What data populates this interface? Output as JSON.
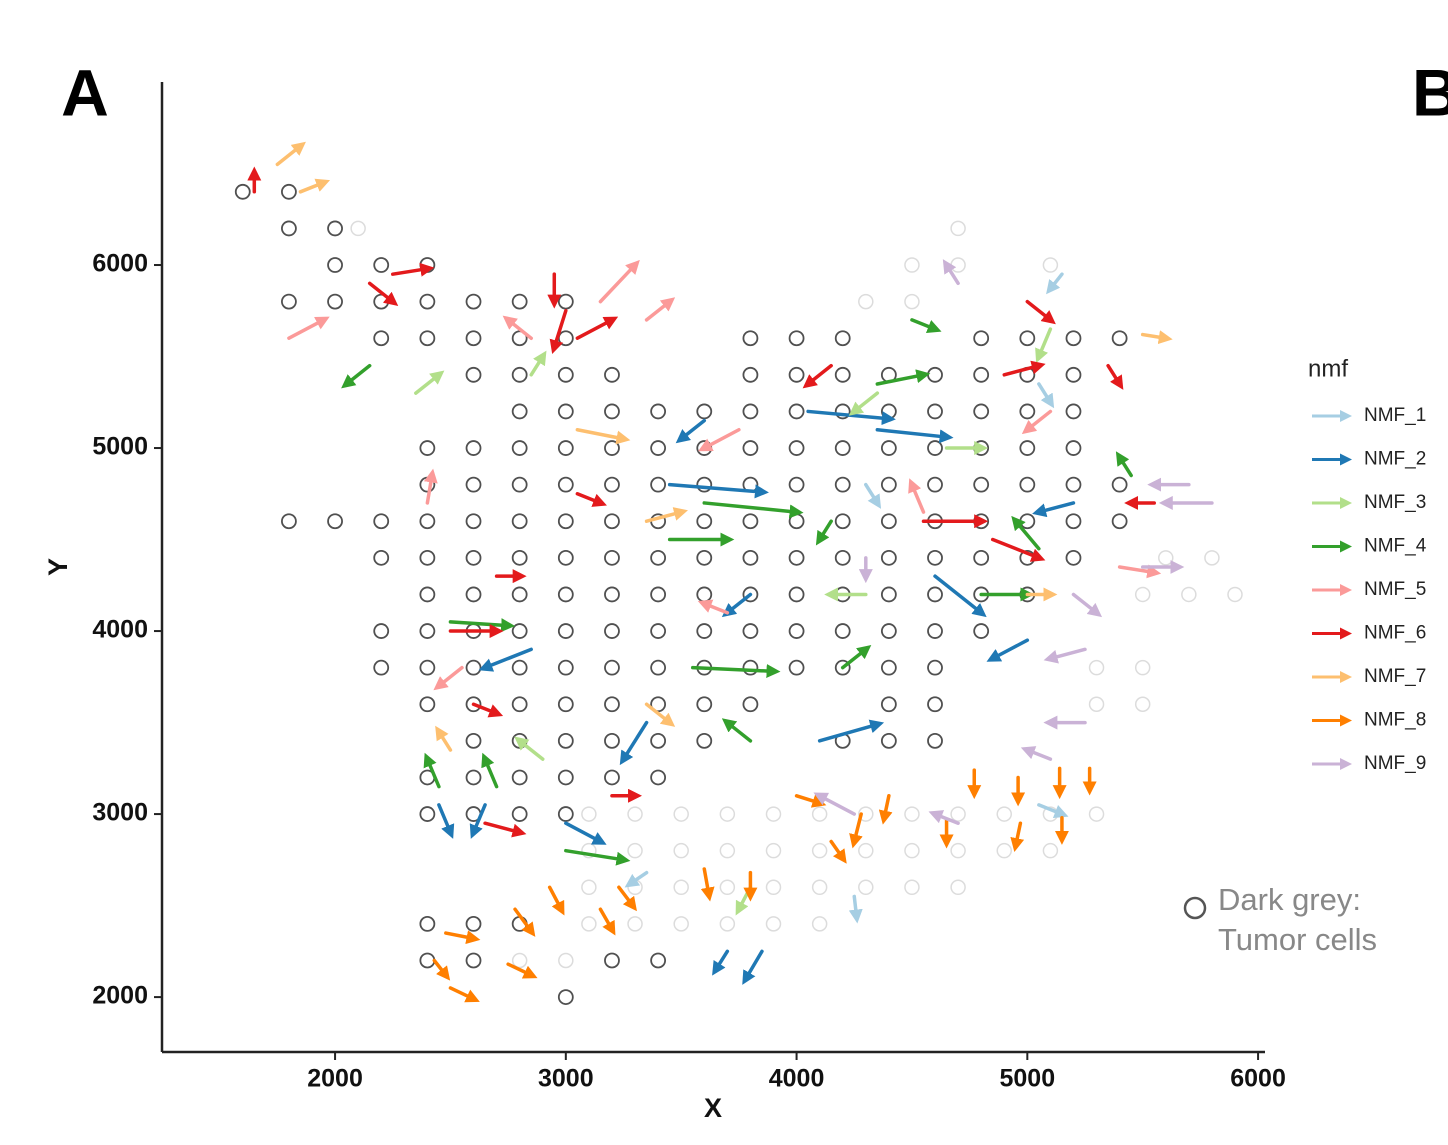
{
  "panel_labels": [
    "A",
    "B"
  ],
  "chart_data": {
    "type": "vector",
    "x_label": "X",
    "y_label": "Y",
    "xlim": [
      1250,
      6030
    ],
    "ylim": [
      1700,
      7000
    ],
    "xticks": [
      2000,
      3000,
      4000,
      5000,
      6000
    ],
    "yticks": [
      2000,
      3000,
      4000,
      5000,
      6000
    ],
    "legend_title": "nmf",
    "legend_position": "right",
    "annotation": [
      "Dark grey:",
      "Tumor cells"
    ],
    "tumor_color": "#505050",
    "other_color": "#dcdcdc",
    "tumor_spots": [
      {
        "y": 6400,
        "x": [
          1600,
          1800
        ]
      },
      {
        "y": 6200,
        "x": [
          1800,
          2000
        ]
      },
      {
        "y": 6000,
        "x": [
          2000,
          2200,
          2400
        ]
      },
      {
        "y": 5800,
        "x": [
          1800,
          2000,
          2200,
          2400,
          2600,
          2800,
          3000
        ]
      },
      {
        "y": 5600,
        "x": [
          2200,
          2400,
          2600,
          2800,
          3000,
          3800,
          4000,
          4200,
          4800,
          5000,
          5200,
          5400
        ]
      },
      {
        "y": 5400,
        "x": [
          2600,
          2800,
          3000,
          3200,
          3800,
          4000,
          4200,
          4400,
          4600,
          4800,
          5000,
          5200
        ]
      },
      {
        "y": 5200,
        "x": [
          2800,
          3000,
          3200,
          3400,
          3600,
          3800,
          4000,
          4200,
          4400,
          4600,
          4800,
          5000,
          5200
        ]
      },
      {
        "y": 5000,
        "x": [
          2400,
          2600,
          2800,
          3000,
          3200,
          3400,
          3600,
          3800,
          4000,
          4200,
          4400,
          4600,
          4800,
          5000,
          5200
        ]
      },
      {
        "y": 4800,
        "x": [
          2400,
          2600,
          2800,
          3000,
          3200,
          3400,
          3600,
          3800,
          4000,
          4200,
          4400,
          4600,
          4800,
          5000,
          5200,
          5400
        ]
      },
      {
        "y": 4600,
        "x": [
          1800,
          2000,
          2200,
          2400,
          2600,
          2800,
          3000,
          3200,
          3400,
          3600,
          3800,
          4000,
          4200,
          4400,
          4600,
          4800,
          5000,
          5200,
          5400
        ]
      },
      {
        "y": 4400,
        "x": [
          2200,
          2400,
          2600,
          2800,
          3000,
          3200,
          3400,
          3600,
          3800,
          4000,
          4200,
          4400,
          4600,
          4800,
          5000,
          5200
        ]
      },
      {
        "y": 4200,
        "x": [
          2400,
          2600,
          2800,
          3000,
          3200,
          3400,
          3600,
          3800,
          4000,
          4200,
          4400,
          4600,
          4800,
          5000
        ]
      },
      {
        "y": 4000,
        "x": [
          2200,
          2400,
          2600,
          2800,
          3000,
          3200,
          3400,
          3600,
          3800,
          4000,
          4200,
          4400,
          4600,
          4800
        ]
      },
      {
        "y": 3800,
        "x": [
          2200,
          2400,
          2600,
          2800,
          3000,
          3200,
          3400,
          3600,
          3800,
          4000,
          4200,
          4400,
          4600
        ]
      },
      {
        "y": 3600,
        "x": [
          2400,
          2600,
          2800,
          3000,
          3200,
          3400,
          3600,
          3800,
          4400,
          4600
        ]
      },
      {
        "y": 3400,
        "x": [
          2600,
          2800,
          3000,
          3200,
          3400,
          3600,
          4200,
          4400,
          4600
        ]
      },
      {
        "y": 3200,
        "x": [
          2400,
          2600,
          2800,
          3000,
          3200,
          3400
        ]
      },
      {
        "y": 3000,
        "x": [
          2400,
          2600,
          2800,
          3000
        ]
      },
      {
        "y": 2400,
        "x": [
          2400,
          2600,
          2800
        ]
      },
      {
        "y": 2200,
        "x": [
          2400,
          2600,
          3200,
          3400
        ]
      },
      {
        "y": 2000,
        "x": [
          3000
        ]
      }
    ],
    "other_spots": [
      {
        "y": 6200,
        "x": [
          2100,
          4700
        ]
      },
      {
        "y": 6000,
        "x": [
          4500,
          4700,
          5100
        ]
      },
      {
        "y": 5800,
        "x": [
          4300,
          4500
        ]
      },
      {
        "y": 4400,
        "x": [
          5600,
          5800
        ]
      },
      {
        "y": 4200,
        "x": [
          5500,
          5700,
          5900
        ]
      },
      {
        "y": 3800,
        "x": [
          5300,
          5500
        ]
      },
      {
        "y": 3600,
        "x": [
          5300,
          5500
        ]
      },
      {
        "y": 3000,
        "x": [
          3100,
          3300,
          3500,
          3700,
          3900,
          4100,
          4300,
          4500,
          4700,
          4900,
          5100,
          5300
        ]
      },
      {
        "y": 2800,
        "x": [
          3100,
          3300,
          3500,
          3700,
          3900,
          4100,
          4300,
          4500,
          4700,
          4900,
          5100
        ]
      },
      {
        "y": 2600,
        "x": [
          3100,
          3300,
          3500,
          3700,
          3900,
          4100,
          4300,
          4500,
          4700
        ]
      },
      {
        "y": 2400,
        "x": [
          3100,
          3300,
          3500,
          3700,
          3900,
          4100
        ]
      },
      {
        "y": 2200,
        "x": [
          2800,
          3000
        ]
      }
    ],
    "series": [
      {
        "name": "NMF_1",
        "color": "#a6cee3",
        "x": [
          5050,
          4250,
          5150,
          4300,
          3350,
          5050
        ],
        "y": [
          3050,
          2550,
          5950,
          4800,
          2680,
          5350
        ],
        "xend": [
          5150,
          4260,
          5100,
          4350,
          3280,
          5100
        ],
        "yend": [
          3000,
          2440,
          5870,
          4700,
          2620,
          5250
        ]
      },
      {
        "name": "NMF_2",
        "color": "#1f78b4",
        "x": [
          3450,
          4050,
          4350,
          2850,
          3000,
          3350,
          4100,
          3700,
          3850,
          5200,
          2650,
          2450,
          4600,
          3600,
          3800,
          5000
        ],
        "y": [
          4800,
          5200,
          5100,
          3900,
          2950,
          3500,
          3400,
          2250,
          2250,
          4700,
          3050,
          3050,
          4300,
          5150,
          4200,
          3950
        ],
        "xend": [
          3850,
          4400,
          4650,
          2650,
          3150,
          3250,
          4350,
          3650,
          3780,
          5050,
          2600,
          2500,
          4800,
          3500,
          3700,
          4850
        ],
        "yend": [
          4760,
          5160,
          5060,
          3800,
          2850,
          3300,
          3490,
          2150,
          2100,
          4650,
          2900,
          2900,
          4100,
          5050,
          4100,
          3850
        ]
      },
      {
        "name": "NMF_3",
        "color": "#b2df8a",
        "x": [
          2850,
          4350,
          4650,
          2350,
          4300,
          5100,
          3800,
          2900
        ],
        "y": [
          5400,
          5300,
          5000,
          5300,
          4200,
          5650,
          2600,
          3300
        ],
        "xend": [
          2900,
          4250,
          4800,
          2450,
          4150,
          5050,
          3750,
          2800
        ],
        "yend": [
          5500,
          5200,
          5000,
          5400,
          4200,
          5500,
          2480,
          3400
        ]
      },
      {
        "name": "NMF_4",
        "color": "#33a02c",
        "x": [
          3450,
          3600,
          3550,
          2500,
          4350,
          4500,
          2450,
          2700,
          3000,
          4150,
          4800,
          5050,
          2150,
          5450,
          4200,
          3800
        ],
        "y": [
          4500,
          4700,
          3800,
          4050,
          5350,
          5700,
          3150,
          3150,
          2800,
          4600,
          4200,
          4450,
          5450,
          4850,
          3800,
          3400
        ],
        "xend": [
          3700,
          4000,
          3900,
          2750,
          4550,
          4600,
          2400,
          2650,
          3250,
          4100,
          5000,
          4950,
          2050,
          5400,
          4300,
          3700
        ],
        "yend": [
          4500,
          4650,
          3780,
          4030,
          5400,
          5650,
          3300,
          3300,
          2750,
          4500,
          4200,
          4600,
          5350,
          4950,
          3900,
          3500
        ]
      },
      {
        "name": "NMF_5",
        "color": "#fb9a99",
        "x": [
          1800,
          2850,
          3150,
          3350,
          4550,
          5100,
          2550,
          5400,
          3700,
          3750,
          2400
        ],
        "y": [
          5600,
          5600,
          5800,
          5700,
          4650,
          5200,
          3800,
          4350,
          4100,
          5100,
          4700
        ],
        "xend": [
          1950,
          2750,
          3300,
          3450,
          4500,
          5000,
          2450,
          5550,
          3600,
          3600,
          2420
        ],
        "yend": [
          5700,
          5700,
          6000,
          5800,
          4800,
          5100,
          3700,
          4320,
          4150,
          5000,
          4850
        ]
      },
      {
        "name": "NMF_6",
        "color": "#e31a1c",
        "x": [
          1650,
          2150,
          2250,
          3000,
          2950,
          3050,
          3050,
          4550,
          4850,
          5000,
          4900,
          2700,
          2500,
          2600,
          3200,
          2650,
          5550,
          5350,
          4150
        ],
        "y": [
          6400,
          5900,
          5950,
          5750,
          5950,
          5600,
          4750,
          4600,
          4500,
          5800,
          5400,
          4300,
          4000,
          3600,
          3100,
          2950,
          4700,
          5450,
          5450
        ],
        "xend": [
          1650,
          2250,
          2400,
          2950,
          2950,
          3200,
          3150,
          4800,
          5050,
          5100,
          5050,
          2800,
          2700,
          2700,
          3300,
          2800,
          5450,
          5400,
          4050
        ],
        "yend": [
          6500,
          5800,
          5980,
          5550,
          5800,
          5700,
          4700,
          4600,
          4400,
          5700,
          5450,
          4300,
          4000,
          3550,
          3100,
          2900,
          4700,
          5350,
          5350
        ]
      },
      {
        "name": "NMF_7",
        "color": "#fdbf6f",
        "x": [
          1750,
          1850,
          3350,
          3050,
          5500,
          5000,
          3350,
          2500
        ],
        "y": [
          6550,
          6400,
          4600,
          5100,
          5620,
          4200,
          3600,
          3350
        ],
        "xend": [
          1850,
          1950,
          3500,
          3250,
          5600,
          5100,
          3450,
          2450
        ],
        "yend": [
          6650,
          6450,
          4650,
          5050,
          5600,
          4200,
          3500,
          3450
        ]
      },
      {
        "name": "NMF_8",
        "color": "#ff7f00",
        "x": [
          4770,
          4960,
          5140,
          5270,
          4650,
          4970,
          5150,
          4400,
          4280,
          3800,
          3600,
          3230,
          2930,
          2780,
          2480,
          2430,
          2750,
          2500,
          3150,
          4000,
          4150
        ],
        "y": [
          3240,
          3200,
          3250,
          3250,
          2970,
          2950,
          2980,
          3100,
          3000,
          2680,
          2700,
          2600,
          2600,
          2480,
          2350,
          2200,
          2180,
          2050,
          2480,
          3100,
          2850
        ],
        "xend": [
          4770,
          4960,
          5140,
          5270,
          4650,
          4950,
          5150,
          4380,
          4250,
          3800,
          3620,
          3290,
          2980,
          2850,
          2600,
          2480,
          2850,
          2600,
          3200,
          4100,
          4200
        ],
        "yend": [
          3120,
          3080,
          3120,
          3140,
          2850,
          2830,
          2870,
          2980,
          2850,
          2560,
          2560,
          2500,
          2480,
          2360,
          2320,
          2120,
          2120,
          1990,
          2370,
          3060,
          2760
        ]
      },
      {
        "name": "NMF_9",
        "color": "#cab2d6",
        "x": [
          5700,
          5800,
          5500,
          5200,
          5250,
          5250,
          4700,
          4250,
          4700,
          5100,
          4300
        ],
        "y": [
          4800,
          4700,
          4350,
          4200,
          3900,
          3500,
          5900,
          3000,
          2950,
          3300,
          4400
        ],
        "xend": [
          5550,
          5600,
          5650,
          5300,
          5100,
          5100,
          4650,
          4100,
          4600,
          5000,
          4300
        ],
        "yend": [
          4800,
          4700,
          4350,
          4100,
          3850,
          3500,
          6000,
          3100,
          3000,
          3350,
          4300
        ]
      }
    ]
  }
}
